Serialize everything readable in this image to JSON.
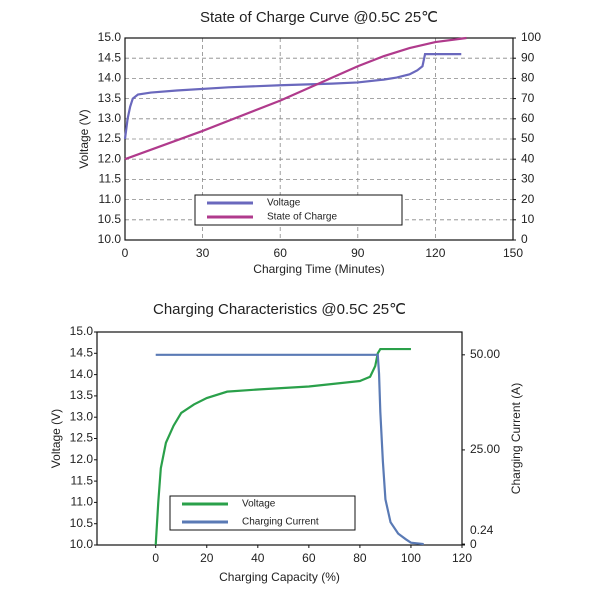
{
  "chart_data": [
    {
      "type": "line",
      "title": "State of Charge Curve @0.5C 25℃",
      "xlabel": "Charging Time (Minutes)",
      "ylabel": "Voltage (V)",
      "xlim": [
        0,
        150
      ],
      "xticks": [
        0,
        30,
        60,
        90,
        120,
        150
      ],
      "ylim": [
        10,
        15
      ],
      "yticks": [
        {
          "value": 10,
          "label": "10.0"
        },
        {
          "value": 10.5,
          "label": "10.5"
        },
        {
          "value": 11,
          "label": "11.0"
        },
        {
          "value": 11.5,
          "label": "11.5"
        },
        {
          "value": 12,
          "label": "12.0"
        },
        {
          "value": 12.5,
          "label": "12.5"
        },
        {
          "value": 13,
          "label": "13.0"
        },
        {
          "value": 13.5,
          "label": "13.5"
        },
        {
          "value": 14,
          "label": "14.0"
        },
        {
          "value": 14.5,
          "label": "14.5"
        },
        {
          "value": 15,
          "label": "15.0"
        }
      ],
      "y2lim": [
        0,
        100
      ],
      "y2ticks": [
        0,
        10,
        20,
        30,
        40,
        50,
        60,
        70,
        80,
        90,
        100
      ],
      "grid": true,
      "series": [
        {
          "name": "Voltage",
          "color": "#6a68bd",
          "x": [
            0,
            1,
            2,
            3,
            5,
            10,
            20,
            40,
            60,
            80,
            90,
            100,
            105,
            110,
            113,
            115,
            116,
            120,
            130
          ],
          "values": [
            12.5,
            13.0,
            13.3,
            13.5,
            13.6,
            13.65,
            13.7,
            13.78,
            13.83,
            13.87,
            13.9,
            13.97,
            14.02,
            14.1,
            14.2,
            14.3,
            14.6,
            14.6,
            14.6
          ]
        },
        {
          "name": "State of Charge",
          "color": "#b03a8c",
          "axis": "y2",
          "x": [
            0,
            30,
            60,
            90,
            100,
            110,
            120,
            132
          ],
          "values": [
            40,
            54,
            69,
            86,
            91,
            95,
            98,
            100
          ]
        }
      ]
    },
    {
      "type": "line",
      "title": "Charging Characteristics @0.5C 25℃",
      "xlabel": "Charging Capacity (%)",
      "ylabel": "Voltage (V)",
      "y2label": "Charging Current (A)",
      "xlim": [
        -23,
        120
      ],
      "xticks": [
        0,
        20,
        40,
        60,
        80,
        100,
        120
      ],
      "ylim": [
        10,
        15
      ],
      "yticks": [
        {
          "value": 10,
          "label": "10.0"
        },
        {
          "value": 10.5,
          "label": "10.5"
        },
        {
          "value": 11,
          "label": "11.0"
        },
        {
          "value": 11.5,
          "label": "11.5"
        },
        {
          "value": 12,
          "label": "12.0"
        },
        {
          "value": 12.5,
          "label": "12.5"
        },
        {
          "value": 13,
          "label": "13.0"
        },
        {
          "value": 13.5,
          "label": "13.5"
        },
        {
          "value": 14,
          "label": "14.0"
        },
        {
          "value": 14.5,
          "label": "14.5"
        },
        {
          "value": 15,
          "label": "15.0"
        }
      ],
      "y2lim": [
        0,
        56
      ],
      "y2ticks": [
        0,
        0.24,
        {
          "value": 25,
          "label": "25.00"
        },
        {
          "value": 50,
          "label": "50.00"
        }
      ],
      "grid": false,
      "series": [
        {
          "name": "Voltage",
          "color": "#2aa04a",
          "x": [
            0,
            1,
            2,
            4,
            7,
            10,
            15,
            20,
            28,
            40,
            60,
            80,
            84,
            86,
            87,
            88,
            100
          ],
          "values": [
            10.0,
            11.0,
            11.8,
            12.4,
            12.8,
            13.1,
            13.3,
            13.45,
            13.6,
            13.65,
            13.72,
            13.85,
            13.95,
            14.2,
            14.5,
            14.6,
            14.6
          ]
        },
        {
          "name": "Charging Current",
          "color": "#5a7ab5",
          "axis": "y2",
          "x": [
            0,
            87,
            87.5,
            88,
            89,
            90,
            92,
            95,
            98,
            100,
            105
          ],
          "values": [
            50,
            50,
            45,
            35,
            22,
            12,
            6,
            3,
            1.5,
            0.6,
            0.24
          ]
        }
      ]
    }
  ]
}
